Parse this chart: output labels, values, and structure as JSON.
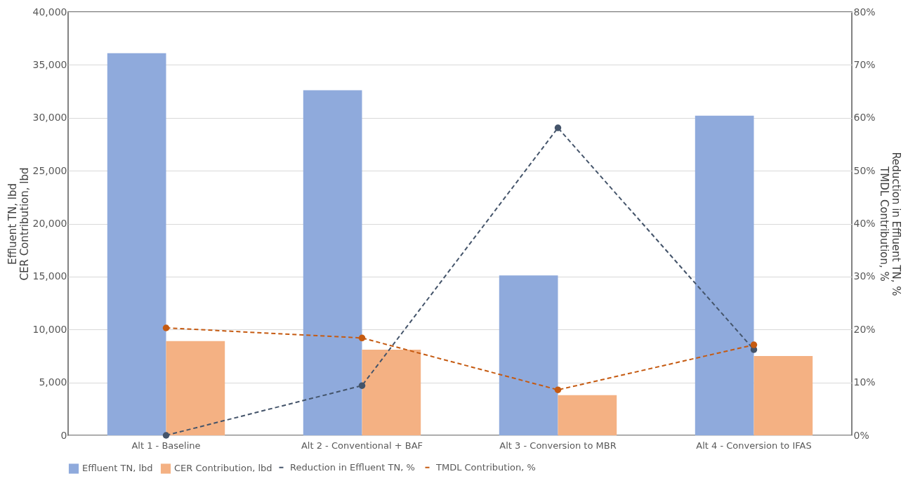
{
  "chart_data": {
    "type": "bar",
    "categories": [
      "Alt 1 - Baseline",
      "Alt 2 - Conventional + BAF",
      "Alt 3 - Conversion to MBR",
      "Alt 4 - Conversion to IFAS"
    ],
    "series": [
      {
        "name": "Effluent TN, lbd",
        "color": "#8faadc",
        "values": [
          36100,
          32600,
          15100,
          30200
        ]
      },
      {
        "name": "CER Contribution, lbd",
        "color": "#f4b183",
        "values": [
          8900,
          8100,
          3800,
          7500
        ]
      },
      {
        "name": "Reduction in Effluent TN, %",
        "type": "line",
        "axis": "y2",
        "color": "#44546a",
        "marker": "circle",
        "line_style": "dashed",
        "values": [
          0,
          9.4,
          58.1,
          16.2
        ]
      },
      {
        "name": "TMDL Contribution, %",
        "type": "line",
        "axis": "y2",
        "color": "#c55a11",
        "marker": "circle",
        "line_style": "dashed",
        "values": [
          20.3,
          18.4,
          8.6,
          17.1
        ]
      }
    ],
    "ylabel": "Effluent TN, lbd\nCER Contribution, lbd",
    "y2label": "Reduction in Effluent TN, %\nTMDL Contribution, %",
    "ylim": [
      0,
      40000
    ],
    "yticks": [
      {
        "value": 0,
        "label": "0"
      },
      {
        "value": 5000,
        "label": "5,000"
      },
      {
        "value": 10000,
        "label": "10,000"
      },
      {
        "value": 15000,
        "label": "15,000"
      },
      {
        "value": 20000,
        "label": "20,000"
      },
      {
        "value": 25000,
        "label": "25,000"
      },
      {
        "value": 30000,
        "label": "30,000"
      },
      {
        "value": 35000,
        "label": "35,000"
      },
      {
        "value": 40000,
        "label": "40,000"
      }
    ],
    "y2lim": [
      0,
      80
    ],
    "y2ticks": [
      {
        "value": 0,
        "label": "0%"
      },
      {
        "value": 10,
        "label": "10%"
      },
      {
        "value": 20,
        "label": "20%"
      },
      {
        "value": 30,
        "label": "30%"
      },
      {
        "value": 40,
        "label": "40%"
      },
      {
        "value": 50,
        "label": "50%"
      },
      {
        "value": 60,
        "label": "60%"
      },
      {
        "value": 70,
        "label": "70%"
      },
      {
        "value": 80,
        "label": "80%"
      }
    ],
    "grid": "y",
    "legend": "bottom"
  }
}
